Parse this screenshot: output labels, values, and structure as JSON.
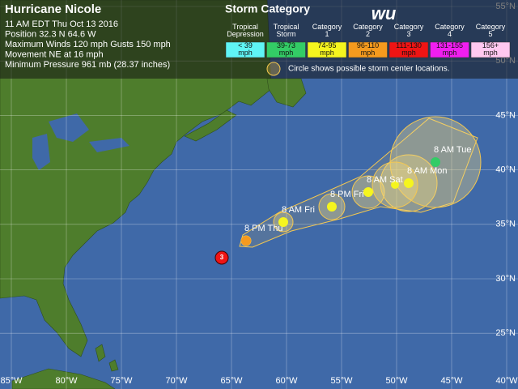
{
  "header": {
    "title": "Hurricane Nicole",
    "lines": [
      "11 AM EDT Thu Oct 13 2016",
      "Position 32.3 N 64.6 W",
      "Maximum Winds 120 mph  Gusts 150 mph",
      "Movement NE at 16 mph",
      "Minimum Pressure 961 mb (28.37 inches)"
    ]
  },
  "legend": {
    "title": "Storm Category",
    "logo": "wu",
    "note": "Circle shows possible storm center locations.",
    "categories": [
      {
        "name": "Tropical Depression",
        "range": "< 39 mph",
        "color": "#5ff5f5"
      },
      {
        "name": "Tropical Storm",
        "range": "39-73 mph",
        "color": "#33cc66"
      },
      {
        "name": "Category 1",
        "range": "74-95 mph",
        "color": "#f5f51e"
      },
      {
        "name": "Category 2",
        "range": "96-110 mph",
        "color": "#f59a1e"
      },
      {
        "name": "Category 3",
        "range": "111-130 mph",
        "color": "#f01414"
      },
      {
        "name": "Category 4",
        "range": "131-155 mph",
        "color": "#f01ef0"
      },
      {
        "name": "Category 5",
        "range": "156+ mph",
        "color": "#ffc8f0"
      }
    ]
  },
  "map": {
    "lon_labels": [
      "85°W",
      "80°W",
      "75°W",
      "70°W",
      "65°W",
      "60°W",
      "55°W",
      "50°W",
      "45°W",
      "40°W"
    ],
    "lat_labels": [
      "55°N",
      "50°N",
      "45°N",
      "40°N",
      "35°N",
      "30°N",
      "25°N"
    ],
    "current": {
      "label": "3",
      "color": "#f01414"
    },
    "forecast": [
      {
        "label": "8 PM Thu",
        "color": "#f59a1e"
      },
      {
        "label": "8 AM Fri",
        "color": "#f5f51e"
      },
      {
        "label": "8 PM Fri",
        "color": "#f5f51e"
      },
      {
        "label": "8 AM Sat",
        "color": "#f5f51e"
      },
      {
        "label": "8 AM Mon",
        "color": "#f5f51e"
      },
      {
        "label": "8 AM Tue",
        "color": "#33cc66"
      }
    ]
  }
}
